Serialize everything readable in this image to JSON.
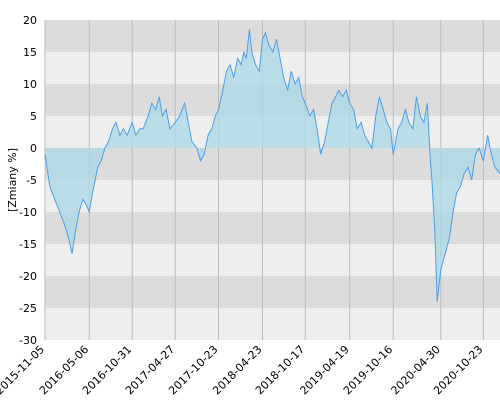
{
  "chart_data": {
    "type": "area",
    "ylabel": "[Zmiany %]",
    "xlim": [
      "2015-11-05",
      "2020-12-31"
    ],
    "ylim": [
      -30,
      20
    ],
    "yticks": [
      20,
      15,
      10,
      5,
      0,
      -5,
      -10,
      -15,
      -20,
      -25,
      -30
    ],
    "xticks": [
      "2015-11-05",
      "2016-05-06",
      "2016-10-31",
      "2017-04-27",
      "2017-10-23",
      "2018-04-23",
      "2018-10-17",
      "2019-04-19",
      "2019-10-16",
      "2020-04-30",
      "2020-10-23"
    ],
    "grid": "horizontal bands and vertical lines",
    "legend": "none",
    "colors": {
      "line": "#4f9fe8",
      "fill": "#add8e6",
      "band_dark": "#dcdcdc",
      "band_light": "#eeeeee"
    },
    "series": [
      {
        "x": [
          "2015-11-05",
          "2015-11-25",
          "2015-12-15",
          "2016-01-05",
          "2016-01-25",
          "2016-02-10",
          "2016-02-25",
          "2016-03-10",
          "2016-03-25",
          "2016-04-10",
          "2016-04-25",
          "2016-05-06",
          "2016-05-20",
          "2016-06-10",
          "2016-06-25",
          "2016-07-10",
          "2016-07-25",
          "2016-08-10",
          "2016-08-25",
          "2016-09-10",
          "2016-09-25",
          "2016-10-10",
          "2016-10-31",
          "2016-11-15",
          "2016-12-01",
          "2016-12-15",
          "2017-01-05",
          "2017-01-20",
          "2017-02-05",
          "2017-02-20",
          "2017-03-05",
          "2017-03-20",
          "2017-04-05",
          "2017-04-27",
          "2017-05-15",
          "2017-06-05",
          "2017-06-20",
          "2017-07-05",
          "2017-07-25",
          "2017-08-10",
          "2017-08-25",
          "2017-09-10",
          "2017-09-25",
          "2017-10-10",
          "2017-10-23",
          "2017-11-10",
          "2017-11-25",
          "2017-12-10",
          "2017-12-25",
          "2018-01-10",
          "2018-01-25",
          "2018-02-05",
          "2018-02-15",
          "2018-02-28",
          "2018-03-10",
          "2018-03-25",
          "2018-04-10",
          "2018-04-23",
          "2018-05-05",
          "2018-05-20",
          "2018-06-05",
          "2018-06-20",
          "2018-07-05",
          "2018-07-20",
          "2018-08-05",
          "2018-08-20",
          "2018-09-05",
          "2018-09-20",
          "2018-10-05",
          "2018-10-17",
          "2018-11-05",
          "2018-11-20",
          "2018-12-05",
          "2018-12-20",
          "2019-01-05",
          "2019-01-20",
          "2019-02-05",
          "2019-02-20",
          "2019-03-05",
          "2019-03-20",
          "2019-04-05",
          "2019-04-19",
          "2019-05-05",
          "2019-05-20",
          "2019-06-05",
          "2019-06-20",
          "2019-07-05",
          "2019-07-20",
          "2019-08-05",
          "2019-08-20",
          "2019-09-05",
          "2019-09-20",
          "2019-10-05",
          "2019-10-16",
          "2019-11-05",
          "2019-11-20",
          "2019-12-05",
          "2019-12-20",
          "2020-01-05",
          "2020-01-20",
          "2020-02-05",
          "2020-02-20",
          "2020-03-05",
          "2020-03-12",
          "2020-03-18",
          "2020-03-24",
          "2020-04-05",
          "2020-04-15",
          "2020-04-30",
          "2020-05-15",
          "2020-06-05",
          "2020-06-20",
          "2020-07-05",
          "2020-07-20",
          "2020-08-05",
          "2020-08-20",
          "2020-09-05",
          "2020-09-20",
          "2020-10-05",
          "2020-10-23",
          "2020-11-10",
          "2020-11-25",
          "2020-12-10",
          "2020-12-31"
        ],
        "y": [
          -1,
          -6,
          -8,
          -10,
          -12,
          -14,
          -16.5,
          -13,
          -10,
          -8,
          -9,
          -10,
          -7,
          -3,
          -2,
          0,
          1,
          3,
          4,
          2,
          3,
          2,
          4,
          2,
          3,
          3,
          5,
          7,
          6,
          8,
          5,
          6,
          3,
          4,
          5,
          7,
          4,
          1,
          0,
          -2,
          -1,
          2,
          3,
          5,
          6,
          9,
          12,
          13,
          11,
          14,
          13,
          15,
          14,
          18.5,
          15,
          13,
          12,
          17,
          18,
          16,
          15,
          17,
          14,
          11,
          9,
          12,
          10,
          11,
          8,
          7,
          5,
          6,
          3,
          -1,
          1,
          4,
          7,
          8,
          9,
          8,
          9,
          7,
          6,
          3,
          4,
          2,
          1,
          0,
          5,
          8,
          6,
          4,
          3,
          -1,
          3,
          4,
          6,
          4,
          3,
          8,
          5,
          4,
          7,
          2,
          -2,
          -5,
          -13,
          -24,
          -19,
          -17,
          -14,
          -10,
          -7,
          -6,
          -4,
          -3,
          -5,
          -1,
          0,
          -2,
          2,
          -1,
          -3,
          -4
        ]
      }
    ]
  }
}
